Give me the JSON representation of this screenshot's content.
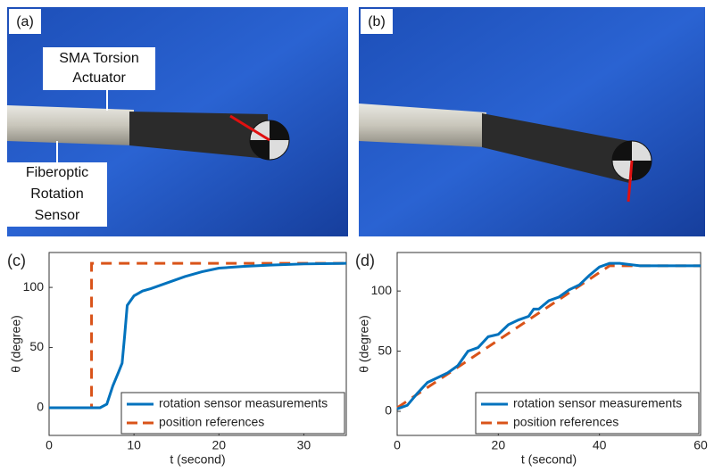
{
  "photos": [
    {
      "label": "(a)",
      "annotations": [
        {
          "lines": [
            "SMA Torsion",
            "Actuator"
          ]
        },
        {
          "lines": [
            "Fiberoptic",
            "Rotation",
            "Sensor"
          ]
        }
      ]
    },
    {
      "label": "(b)"
    }
  ],
  "chart_data": [
    {
      "type": "line",
      "panel_label": "(c)",
      "xlabel": "t (second)",
      "ylabel": "θ (degree)",
      "xlim": [
        0,
        35
      ],
      "xticks": [
        0,
        10,
        20,
        30
      ],
      "ylim": [
        -23,
        129
      ],
      "yticks": [
        0,
        50,
        100
      ],
      "legend": "lower right",
      "series": [
        {
          "name": "rotation sensor measurements",
          "color": "#0072bd",
          "style": "solid",
          "x": [
            0,
            3,
            6,
            6.8,
            7.5,
            8.2,
            8.6,
            8.9,
            9.2,
            10,
            11,
            12,
            14,
            16,
            18,
            20,
            23,
            26,
            30,
            35
          ],
          "values": [
            0,
            0,
            0,
            3,
            18,
            30,
            37,
            60,
            85,
            93,
            97,
            99,
            104,
            109,
            113,
            116,
            117.5,
            118.5,
            119.5,
            120
          ]
        },
        {
          "name": "position references",
          "color": "#d95319",
          "style": "dashed",
          "x": [
            0,
            5,
            5,
            35
          ],
          "values": [
            0,
            0,
            120,
            120
          ]
        }
      ]
    },
    {
      "type": "line",
      "panel_label": "(d)",
      "xlabel": "t (second)",
      "ylabel": "θ (degree)",
      "xlim": [
        0,
        60
      ],
      "xticks": [
        0,
        20,
        40,
        60
      ],
      "ylim": [
        -20,
        132
      ],
      "yticks": [
        0,
        50,
        100
      ],
      "legend": "lower right",
      "series": [
        {
          "name": "rotation sensor measurements",
          "color": "#0072bd",
          "style": "solid",
          "x": [
            0,
            2,
            4,
            6,
            8,
            10,
            12,
            14,
            16,
            18,
            20,
            22,
            24,
            26,
            27,
            28,
            30,
            32,
            34,
            36,
            38,
            40,
            42,
            44,
            48,
            52,
            56,
            60
          ],
          "values": [
            2,
            5,
            15,
            24,
            28,
            32,
            38,
            50,
            53,
            62,
            64,
            72,
            76,
            79,
            85,
            85,
            92,
            95,
            101,
            105,
            113,
            120,
            123,
            123,
            121,
            121,
            121,
            121
          ]
        },
        {
          "name": "position references",
          "color": "#d95319",
          "style": "dashed",
          "x": [
            0,
            42,
            60
          ],
          "values": [
            3,
            121,
            121
          ]
        }
      ]
    }
  ]
}
